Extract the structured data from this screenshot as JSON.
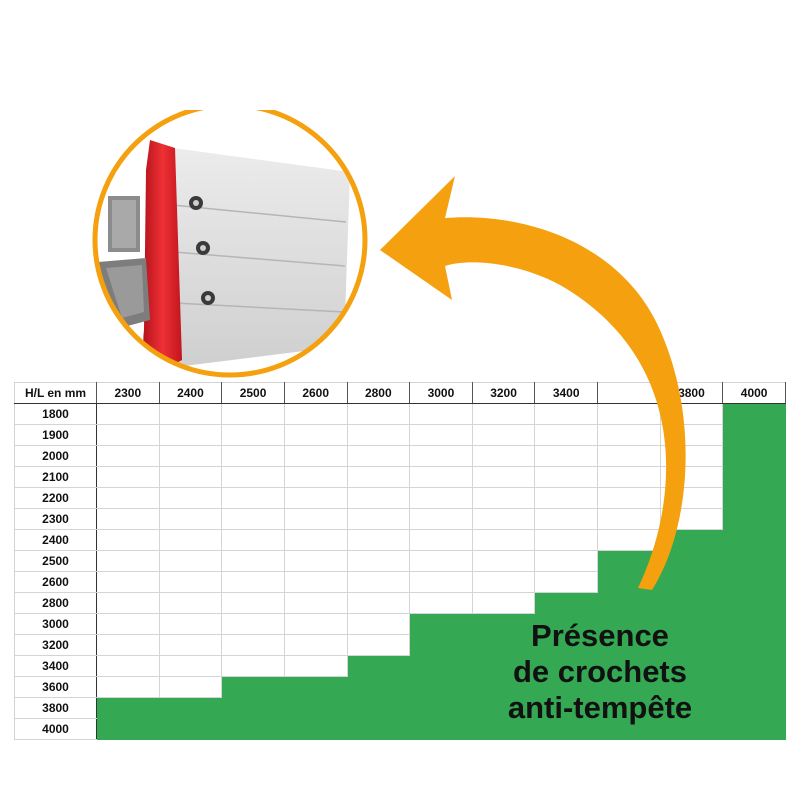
{
  "table": {
    "corner_label": "H/L en mm",
    "columns": [
      "2300",
      "2400",
      "2500",
      "2600",
      "2800",
      "3000",
      "3200",
      "3400",
      "",
      "3800",
      "4000"
    ],
    "rows": [
      "1800",
      "1900",
      "2000",
      "2100",
      "2200",
      "2300",
      "2400",
      "2500",
      "2600",
      "2800",
      "3000",
      "3200",
      "3400",
      "3600",
      "3800",
      "4000"
    ],
    "green_from_row": [
      14,
      14,
      13,
      13,
      12,
      10,
      10,
      9,
      7,
      6,
      0
    ],
    "fill_color": "#34a853"
  },
  "caption": {
    "lines": [
      "Présence",
      "de crochets",
      "anti-tempête"
    ]
  },
  "arrow": {
    "color": "#f5a00f"
  },
  "inset": {
    "ring_color": "#f5a00f",
    "gasket_color": "#d7262b",
    "icons": [
      "hook-icon",
      "screw-hole-icon"
    ]
  }
}
